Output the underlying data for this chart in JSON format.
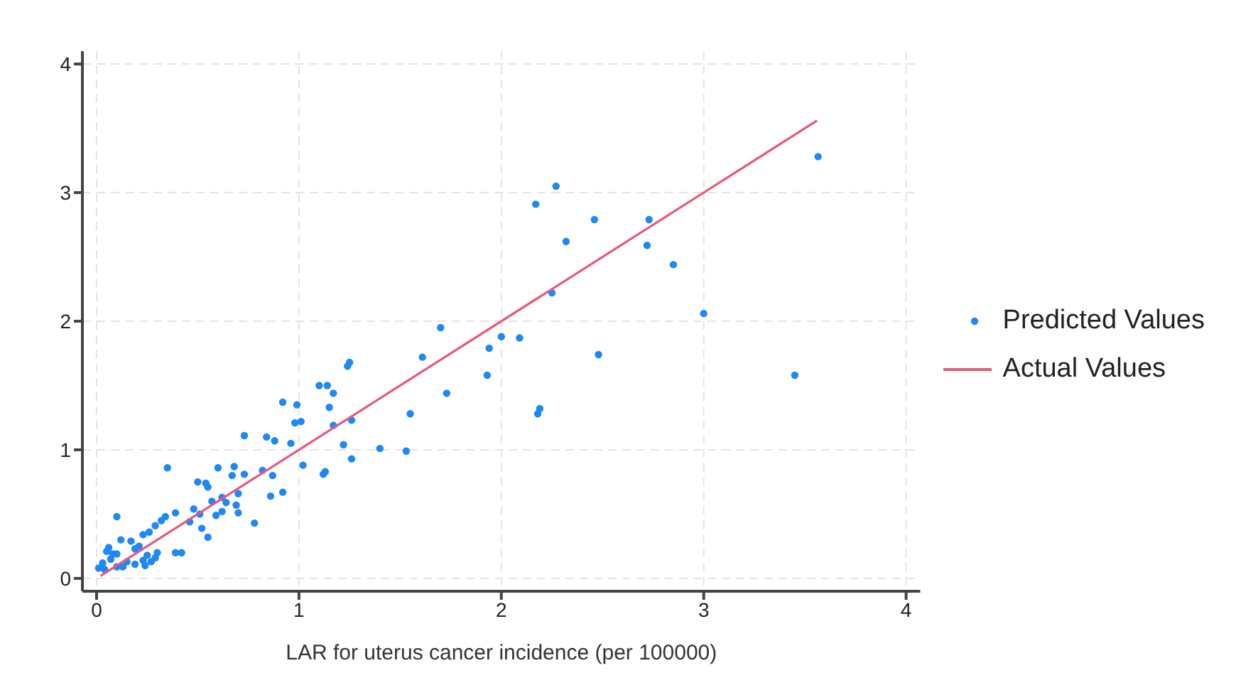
{
  "chart_data": {
    "type": "scatter",
    "xlabel": "LAR for uterus cancer incidence (per 100000)",
    "xlim": [
      -0.07,
      4.07
    ],
    "ylim": [
      -0.1,
      4.1
    ],
    "xticks": [
      0,
      1,
      2,
      3,
      4
    ],
    "yticks": [
      0,
      1,
      2,
      3,
      4
    ],
    "grid": true,
    "legend": "right",
    "marker": "circle",
    "series": [
      {
        "name": "Predicted Values",
        "color": "#1e88f5",
        "x": [
          3.565,
          2.27,
          2.17,
          2.46,
          2.73,
          2.32,
          2.72,
          2.85,
          2.25,
          3.0,
          1.7,
          2.0,
          2.09,
          1.94,
          2.48,
          1.61,
          1.93,
          3.45,
          1.73,
          1.55,
          2.19,
          2.18,
          1.4,
          1.53,
          1.25,
          1.24,
          1.1,
          1.14,
          1.17,
          1.15,
          1.26,
          1.17,
          1.22,
          1.26,
          1.13,
          1.12,
          0.92,
          0.99,
          0.98,
          1.01,
          0.96,
          1.02,
          0.84,
          0.88,
          0.73,
          0.82,
          0.87,
          0.86,
          0.92,
          0.78,
          0.68,
          0.6,
          0.35,
          0.73,
          0.67,
          0.54,
          0.55,
          0.5,
          0.7,
          0.62,
          0.64,
          0.69,
          0.7,
          0.59,
          0.62,
          0.57,
          0.48,
          0.51,
          0.46,
          0.52,
          0.55,
          0.39,
          0.34,
          0.32,
          0.29,
          0.1,
          0.23,
          0.26,
          0.39,
          0.42,
          0.29,
          0.3,
          0.12,
          0.17,
          0.19,
          0.21,
          0.25,
          0.23,
          0.15,
          0.19,
          0.06,
          0.05,
          0.07,
          0.03,
          0.01,
          0.04,
          0.1,
          0.13,
          0.08,
          0.1,
          0.27,
          0.24
        ],
        "values": [
          3.28,
          3.05,
          2.91,
          2.79,
          2.79,
          2.62,
          2.59,
          2.44,
          2.22,
          2.06,
          1.95,
          1.88,
          1.87,
          1.79,
          1.74,
          1.72,
          1.58,
          1.58,
          1.44,
          1.28,
          1.32,
          1.28,
          1.01,
          0.99,
          1.68,
          1.65,
          1.5,
          1.5,
          1.44,
          1.33,
          1.23,
          1.19,
          1.04,
          0.93,
          0.83,
          0.81,
          1.37,
          1.35,
          1.21,
          1.22,
          1.05,
          0.88,
          1.1,
          1.07,
          1.11,
          0.84,
          0.8,
          0.64,
          0.67,
          0.43,
          0.87,
          0.86,
          0.86,
          0.81,
          0.8,
          0.74,
          0.71,
          0.75,
          0.66,
          0.63,
          0.59,
          0.57,
          0.51,
          0.49,
          0.52,
          0.6,
          0.54,
          0.5,
          0.44,
          0.39,
          0.32,
          0.51,
          0.48,
          0.45,
          0.41,
          0.48,
          0.34,
          0.36,
          0.2,
          0.2,
          0.16,
          0.2,
          0.3,
          0.29,
          0.23,
          0.25,
          0.18,
          0.14,
          0.13,
          0.11,
          0.24,
          0.21,
          0.15,
          0.12,
          0.08,
          0.07,
          0.09,
          0.09,
          0.19,
          0.19,
          0.13,
          0.1
        ]
      },
      {
        "name": "Actual Values",
        "type": "line",
        "color": "#e8587a",
        "line_style": "solid",
        "marker": "none",
        "x": [
          0.02,
          3.56
        ],
        "values": [
          0.02,
          3.56
        ]
      }
    ]
  }
}
